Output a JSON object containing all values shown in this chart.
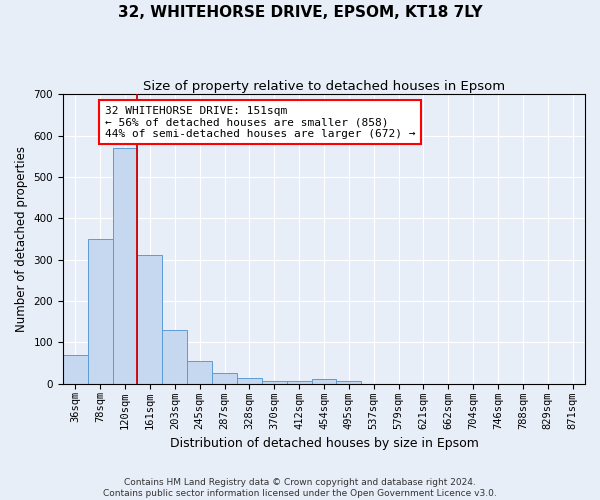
{
  "title": "32, WHITEHORSE DRIVE, EPSOM, KT18 7LY",
  "subtitle": "Size of property relative to detached houses in Epsom",
  "xlabel": "Distribution of detached houses by size in Epsom",
  "ylabel": "Number of detached properties",
  "annotation_title": "32 WHITEHORSE DRIVE: 151sqm",
  "annotation_line1": "← 56% of detached houses are smaller (858)",
  "annotation_line2": "44% of semi-detached houses are larger (672) →",
  "footer1": "Contains HM Land Registry data © Crown copyright and database right 2024.",
  "footer2": "Contains public sector information licensed under the Open Government Licence v3.0.",
  "bin_labels": [
    "36sqm",
    "78sqm",
    "120sqm",
    "161sqm",
    "203sqm",
    "245sqm",
    "287sqm",
    "328sqm",
    "370sqm",
    "412sqm",
    "454sqm",
    "495sqm",
    "537sqm",
    "579sqm",
    "621sqm",
    "662sqm",
    "704sqm",
    "746sqm",
    "788sqm",
    "829sqm",
    "871sqm"
  ],
  "bar_values": [
    70,
    350,
    570,
    310,
    130,
    55,
    25,
    13,
    7,
    7,
    10,
    5,
    0,
    0,
    0,
    0,
    0,
    0,
    0,
    0,
    0
  ],
  "bar_color": "#c5d8f0",
  "bar_edge_color": "#5b9bd5",
  "red_line_color": "#cc0000",
  "ylim": [
    0,
    700
  ],
  "yticks": [
    0,
    100,
    200,
    300,
    400,
    500,
    600,
    700
  ],
  "background_color": "#e8eef8",
  "grid_color": "#ffffff",
  "title_fontsize": 11,
  "subtitle_fontsize": 9.5,
  "xlabel_fontsize": 9,
  "ylabel_fontsize": 8.5,
  "tick_fontsize": 7.5,
  "annotation_fontsize": 8,
  "footer_fontsize": 6.5
}
